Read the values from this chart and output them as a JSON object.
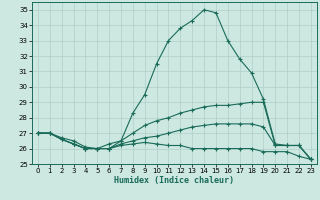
{
  "xlabel": "Humidex (Indice chaleur)",
  "xlim": [
    -0.5,
    23.5
  ],
  "ylim": [
    25,
    35.5
  ],
  "yticks": [
    25,
    26,
    27,
    28,
    29,
    30,
    31,
    32,
    33,
    34,
    35
  ],
  "xticks": [
    0,
    1,
    2,
    3,
    4,
    5,
    6,
    7,
    8,
    9,
    10,
    11,
    12,
    13,
    14,
    15,
    16,
    17,
    18,
    19,
    20,
    21,
    22,
    23
  ],
  "bg_color": "#cce8e0",
  "grid_color": "#b0cfc8",
  "line_color": "#1a6b5a",
  "lines": [
    {
      "x": [
        0,
        1,
        2,
        3,
        4,
        5,
        6,
        7,
        8,
        9,
        10,
        11,
        12,
        13,
        14,
        15,
        16,
        17,
        18,
        19,
        20,
        21,
        22,
        23
      ],
      "y": [
        27.0,
        27.0,
        26.7,
        26.5,
        26.1,
        26.0,
        26.3,
        26.5,
        28.3,
        29.5,
        31.5,
        33.0,
        33.8,
        34.3,
        35.0,
        34.8,
        33.0,
        31.8,
        30.9,
        29.2,
        26.3,
        26.2,
        26.2,
        25.3
      ]
    },
    {
      "x": [
        0,
        1,
        2,
        3,
        4,
        5,
        6,
        7,
        8,
        9,
        10,
        11,
        12,
        13,
        14,
        15,
        16,
        17,
        18,
        19,
        20,
        21,
        22,
        23
      ],
      "y": [
        27.0,
        27.0,
        26.6,
        26.3,
        26.0,
        26.0,
        26.0,
        26.5,
        27.0,
        27.5,
        27.8,
        28.0,
        28.3,
        28.5,
        28.7,
        28.8,
        28.8,
        28.9,
        29.0,
        29.0,
        26.2,
        26.2,
        26.2,
        25.3
      ]
    },
    {
      "x": [
        0,
        1,
        2,
        3,
        4,
        5,
        6,
        7,
        8,
        9,
        10,
        11,
        12,
        13,
        14,
        15,
        16,
        17,
        18,
        19,
        20,
        21,
        22,
        23
      ],
      "y": [
        27.0,
        27.0,
        26.6,
        26.3,
        26.0,
        26.0,
        26.0,
        26.3,
        26.5,
        26.7,
        26.8,
        27.0,
        27.2,
        27.4,
        27.5,
        27.6,
        27.6,
        27.6,
        27.6,
        27.4,
        26.2,
        26.2,
        26.2,
        25.3
      ]
    },
    {
      "x": [
        0,
        1,
        2,
        3,
        4,
        5,
        6,
        7,
        8,
        9,
        10,
        11,
        12,
        13,
        14,
        15,
        16,
        17,
        18,
        19,
        20,
        21,
        22,
        23
      ],
      "y": [
        27.0,
        27.0,
        26.6,
        26.3,
        26.0,
        26.0,
        26.0,
        26.2,
        26.3,
        26.4,
        26.3,
        26.2,
        26.2,
        26.0,
        26.0,
        26.0,
        26.0,
        26.0,
        26.0,
        25.8,
        25.8,
        25.8,
        25.5,
        25.3
      ]
    }
  ]
}
